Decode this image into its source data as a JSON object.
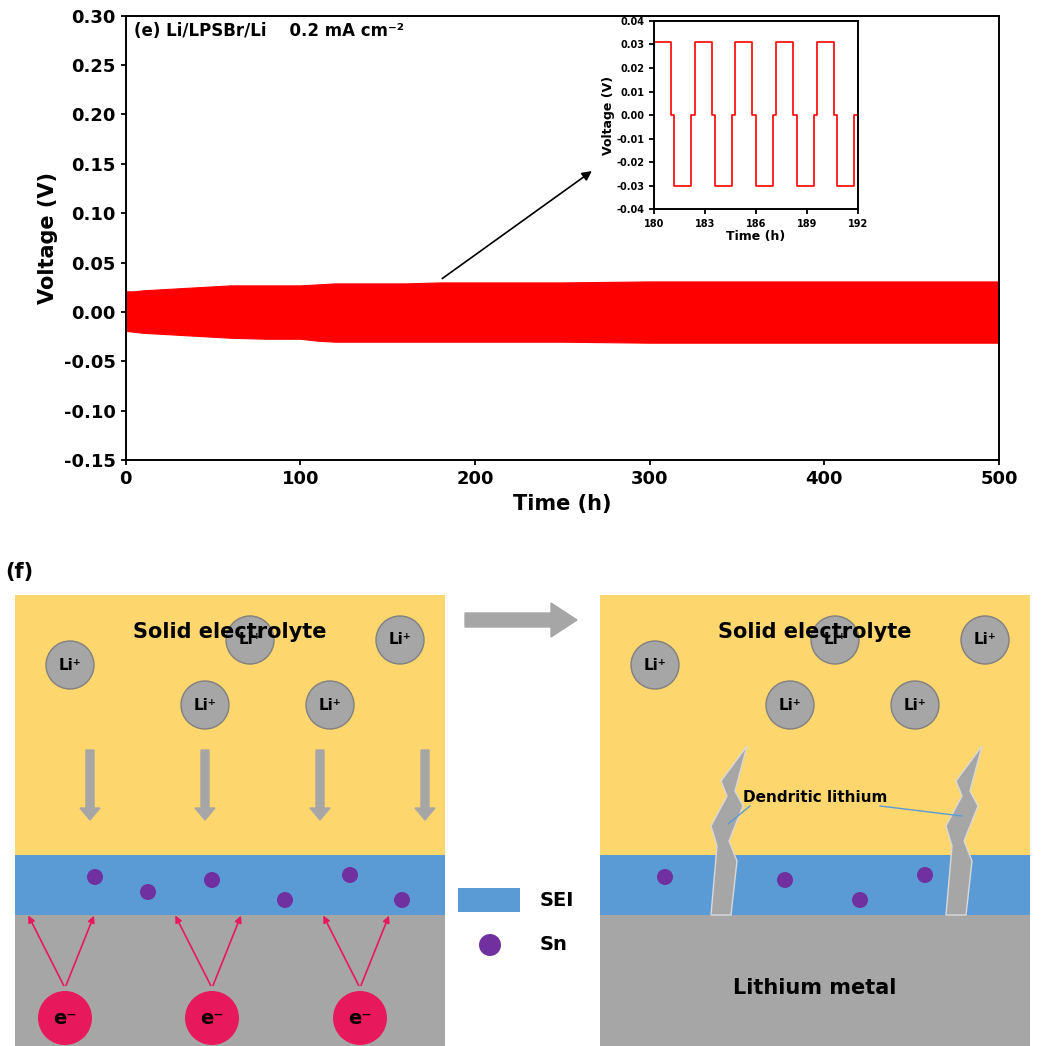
{
  "chart_data": [
    {
      "type": "area",
      "title": "(e) Li/LPSBr/Li    0.2 mA cm⁻²",
      "x_label": "Time (h)",
      "y_label": "Voltage (V)",
      "x": [
        0,
        5,
        10,
        20,
        30,
        40,
        50,
        60,
        80,
        100,
        110,
        120,
        140,
        160,
        180,
        200,
        250,
        300,
        350,
        400,
        450,
        500
      ],
      "series": [
        {
          "color": "#ff0000",
          "values": [
            0.021,
            0.021,
            0.022,
            0.023,
            0.024,
            0.025,
            0.026,
            0.027,
            0.027,
            0.027,
            0.028,
            0.029,
            0.029,
            0.029,
            0.03,
            0.03,
            0.03,
            0.031,
            0.031,
            0.031,
            0.031,
            0.031
          ]
        },
        {
          "color": "#ff0000",
          "values": [
            -0.019,
            -0.02,
            -0.021,
            -0.022,
            -0.023,
            -0.024,
            -0.025,
            -0.026,
            -0.027,
            -0.027,
            -0.029,
            -0.03,
            -0.03,
            -0.03,
            -0.03,
            -0.03,
            -0.03,
            -0.031,
            -0.031,
            -0.031,
            -0.031,
            -0.031
          ]
        }
      ],
      "xlim": [
        0,
        500
      ],
      "xticks": [
        0,
        100,
        200,
        300,
        400,
        500
      ],
      "ylim": [
        -0.15,
        0.3
      ],
      "yticks": [
        {
          "value": -0.15,
          "label": "-0.15"
        },
        {
          "value": -0.1,
          "label": "-0.10"
        },
        {
          "value": -0.05,
          "label": "-0.05"
        },
        {
          "value": 0.0,
          "label": "0.00"
        },
        {
          "value": 0.05,
          "label": "0.05"
        },
        {
          "value": 0.1,
          "label": "0.10"
        },
        {
          "value": 0.15,
          "label": "0.15"
        },
        {
          "value": 0.2,
          "label": "0.20"
        },
        {
          "value": 0.25,
          "label": "0.25"
        },
        {
          "value": 0.3,
          "label": "0.30"
        }
      ],
      "grid": false
    },
    {
      "type": "line",
      "x_label": "Time (h)",
      "y_label": "Voltage (V)",
      "x": [
        180.0,
        181.0,
        181.0,
        181.2,
        181.2,
        182.2,
        182.2,
        182.4,
        182.4,
        183.4,
        183.4,
        183.6,
        183.6,
        184.6,
        184.6,
        184.8,
        184.8,
        185.8,
        185.8,
        186.0,
        186.0,
        187.0,
        187.0,
        187.2,
        187.2,
        188.2,
        188.2,
        188.4,
        188.4,
        189.4,
        189.4,
        189.6,
        189.6,
        190.6,
        190.6,
        190.8,
        190.8,
        191.8,
        191.8,
        192.0,
        192.0
      ],
      "series": [
        {
          "color": "#ff0000",
          "values": [
            0.031,
            0.031,
            0.0,
            0.0,
            -0.03,
            -0.03,
            0.0,
            0.0,
            0.031,
            0.031,
            0.0,
            0.0,
            -0.03,
            -0.03,
            0.0,
            0.0,
            0.031,
            0.031,
            0.0,
            0.0,
            -0.03,
            -0.03,
            0.0,
            0.0,
            0.031,
            0.031,
            0.0,
            0.0,
            -0.03,
            -0.03,
            0.0,
            0.0,
            0.031,
            0.031,
            0.0,
            0.0,
            -0.03,
            -0.03,
            0.0,
            0.0,
            0.031
          ]
        }
      ],
      "xlim": [
        180,
        192
      ],
      "xticks": [
        180,
        183,
        186,
        189,
        192
      ],
      "ylim": [
        -0.04,
        0.04
      ],
      "yticks": [
        {
          "value": -0.04,
          "label": "-0.04"
        },
        {
          "value": -0.03,
          "label": "-0.03"
        },
        {
          "value": -0.02,
          "label": "-0.02"
        },
        {
          "value": -0.01,
          "label": "-0.01"
        },
        {
          "value": 0.0,
          "label": "0.00"
        },
        {
          "value": 0.01,
          "label": "0.01"
        },
        {
          "value": 0.02,
          "label": "0.02"
        },
        {
          "value": 0.03,
          "label": "0.03"
        },
        {
          "value": 0.04,
          "label": "0.04"
        }
      ],
      "grid": false
    }
  ],
  "diagram": {
    "label": "(f)",
    "panels": [
      {
        "electrolyte": "Solid electrolyte",
        "ions": [
          "Li⁺",
          "Li⁺",
          "Li⁺",
          "Li⁺",
          "Li⁺"
        ],
        "electrons": [
          "e⁻",
          "e⁻",
          "e⁻"
        ]
      },
      {
        "electrolyte": "Solid electrolyte",
        "ions": [
          "Li⁺",
          "Li⁺",
          "Li⁺",
          "Li⁺",
          "Li⁺"
        ],
        "dendrites": "Dendritic lithium",
        "metal": "Lithium metal"
      }
    ],
    "legend": [
      {
        "label": "SEI",
        "color": "#5b9bd5"
      },
      {
        "label": "Sn",
        "color": "#7030a0"
      }
    ]
  }
}
